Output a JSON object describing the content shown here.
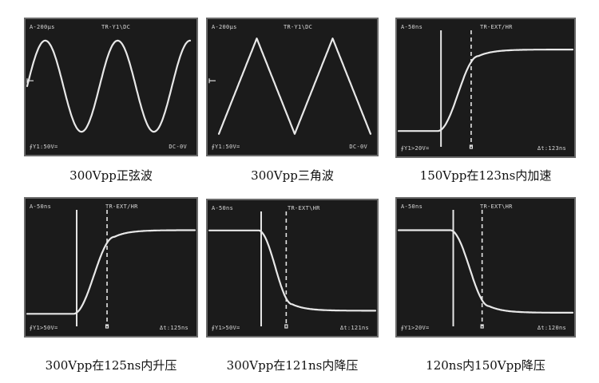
{
  "colors": {
    "screen": "#1b1b1b",
    "trace": "#e8e8e8",
    "frame": "#6a6a6a",
    "caption": "#111111"
  },
  "panels": [
    {
      "caption": "300Vpp正弦波",
      "labels": {
        "tl": "A-200μs",
        "tm": "TR-Y1\\DC",
        "bl": "∮Y1:50V=",
        "br": "DC-0V"
      },
      "chart_data": {
        "type": "line",
        "waveform": "sine",
        "amplitude_vpp": 300,
        "cycles_shown": 2.25,
        "trigger_marker": "left"
      }
    },
    {
      "caption": "300Vpp三角波",
      "labels": {
        "tl": "A-200μs",
        "tm": "TR-Y1\\DC",
        "bl": "∮Y1:50V=",
        "br": "DC-0V"
      },
      "chart_data": {
        "type": "line",
        "waveform": "triangle",
        "amplitude_vpp": 300,
        "cycles_shown": 2.0,
        "trigger_marker": "left"
      }
    },
    {
      "caption": "150Vpp在123ns内加速",
      "labels": {
        "tl": "A-50ns",
        "tm": "TR-EXT/HR",
        "bl": "∮Y1>20V=",
        "br": "Δt:123ns"
      },
      "chart_data": {
        "type": "line",
        "waveform": "rising-edge",
        "amplitude_vpp": 150,
        "transition_ns": 123,
        "edge_start": 0.23,
        "edge_end": 0.46,
        "low_level": 0.1,
        "high_level": 0.84
      }
    },
    {
      "caption": "300Vpp在125ns内升压",
      "labels": {
        "tl": "A-50ns",
        "tm": "TR-EXT/HR",
        "bl": "∮Y1>50V=",
        "br": "Δt:125ns"
      },
      "chart_data": {
        "type": "line",
        "waveform": "rising-edge",
        "amplitude_vpp": 300,
        "transition_ns": 125,
        "edge_start": 0.28,
        "edge_end": 0.52,
        "low_level": 0.07,
        "high_level": 0.83
      }
    },
    {
      "caption": "300Vpp在121ns内降压",
      "labels": {
        "tl": "A-50ns",
        "tm": "TR-EXT\\HR",
        "bl": "∮Y1>50V=",
        "br": "Δt:121ns"
      },
      "chart_data": {
        "type": "line",
        "waveform": "falling-edge",
        "amplitude_vpp": 300,
        "transition_ns": 121,
        "edge_start": 0.3,
        "edge_end": 0.5,
        "low_level": 0.1,
        "high_level": 0.84
      }
    },
    {
      "caption": "120ns内150Vpp降压",
      "labels": {
        "tl": "A-50ns",
        "tm": "TR-EXT\\HR",
        "bl": "∮Y1>20V=",
        "br": "Δt:120ns"
      },
      "chart_data": {
        "type": "line",
        "waveform": "falling-edge",
        "amplitude_vpp": 150,
        "transition_ns": 120,
        "edge_start": 0.3,
        "edge_end": 0.52,
        "low_level": 0.08,
        "high_level": 0.83
      }
    }
  ]
}
